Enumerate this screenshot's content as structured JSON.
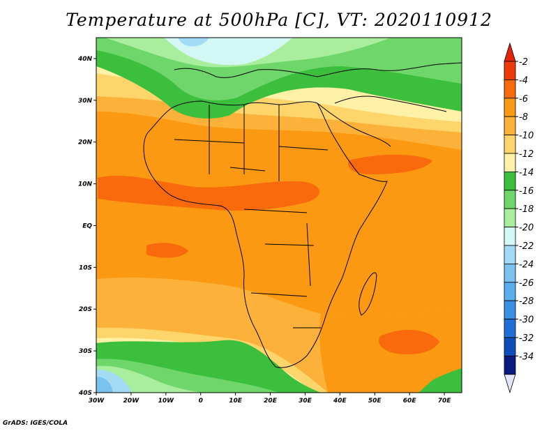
{
  "title": "Temperature at 500hPa [C], VT: 2020110912",
  "credit": "GrADS: IGES/COLA",
  "axes": {
    "lat_labels": [
      "40N",
      "30N",
      "20N",
      "10N",
      "EQ",
      "10S",
      "20S",
      "30S",
      "40S"
    ],
    "lon_labels": [
      "30W",
      "20W",
      "10W",
      "0",
      "10E",
      "20E",
      "30E",
      "40E",
      "50E",
      "60E",
      "70E"
    ]
  },
  "colorbar": {
    "labels": [
      "-2",
      "-4",
      "-6",
      "-8",
      "-10",
      "-12",
      "-14",
      "-16",
      "-18",
      "-20",
      "-22",
      "-24",
      "-26",
      "-28",
      "-30",
      "-32",
      "-34"
    ],
    "colors": [
      "#ee3a0b",
      "#f86a0c",
      "#fb9a12",
      "#fcb13a",
      "#fdd56a",
      "#fff1a5",
      "#3cbf3c",
      "#6ed66a",
      "#a8ee9c",
      "#d2f7f5",
      "#a2dbf3",
      "#7cc2ee",
      "#5aaeee",
      "#3b8fe6",
      "#1f6fd8",
      "#0e4eba",
      "#0a1a80"
    ],
    "top_arrow_color": "#e5220a",
    "bottom_arrow_color": "#e6e6fa"
  }
}
